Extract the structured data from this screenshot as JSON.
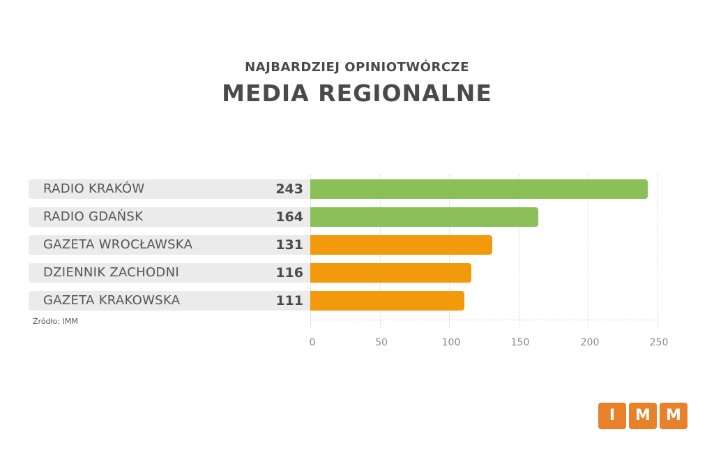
{
  "header": {
    "subtitle": "NAJBARDZIEJ OPINIOTWÓRCZE",
    "title": "MEDIA REGIONALNE"
  },
  "source": "Źródło: IMM",
  "logo": {
    "letters": [
      "I",
      "M",
      "M"
    ],
    "color": "#e8822a"
  },
  "colors": {
    "green": "#8bbf58",
    "orange": "#f39a0c",
    "label_bg": "#ebebeb"
  },
  "chart_data": {
    "type": "bar",
    "orientation": "horizontal",
    "title": "MEDIA REGIONALNE",
    "subtitle": "NAJBARDZIEJ OPINIOTWÓRCZE",
    "categories": [
      "RADIO KRAKÓW",
      "RADIO GDAŃSK",
      "GAZETA WROCŁAWSKA",
      "DZIENNIK ZACHODNI",
      "GAZETA KRAKOWSKA"
    ],
    "values": [
      243,
      164,
      131,
      116,
      111
    ],
    "value_labels": [
      "243",
      "164",
      "131",
      "116",
      "111"
    ],
    "bar_colors": [
      "#8bbf58",
      "#8bbf58",
      "#f39a0c",
      "#f39a0c",
      "#f39a0c"
    ],
    "xlabel": "",
    "ylabel": "",
    "xlim": [
      0,
      250
    ],
    "xticks": [
      "0",
      "50",
      "100",
      "150",
      "200",
      "250"
    ],
    "grid": true,
    "annotation": "Źródło: IMM"
  }
}
